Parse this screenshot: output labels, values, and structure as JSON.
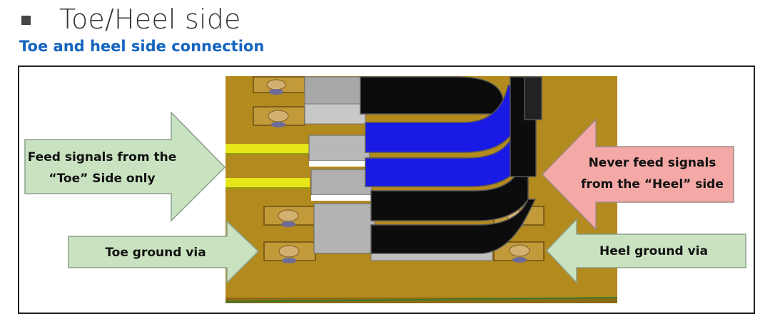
{
  "heading": "Toe/Heel side",
  "subtitle": "Toe and heel side connection",
  "callouts": {
    "feed_toe_line1": "Feed signals from the",
    "feed_toe_line2": "“Toe” Side only",
    "never_heel_line1": "Never feed signals",
    "never_heel_line2": "from the “Heel” side",
    "toe_ground": "Toe ground via",
    "heel_ground": "Heel ground via"
  },
  "colors": {
    "subtitle": "#1565c0",
    "board": "#b38a1e",
    "green_callout": "#c9e2c0",
    "pink_callout": "#f4a9a6",
    "blue_trace": "#1a1ae6",
    "yellow_trace": "#e6e61a"
  }
}
